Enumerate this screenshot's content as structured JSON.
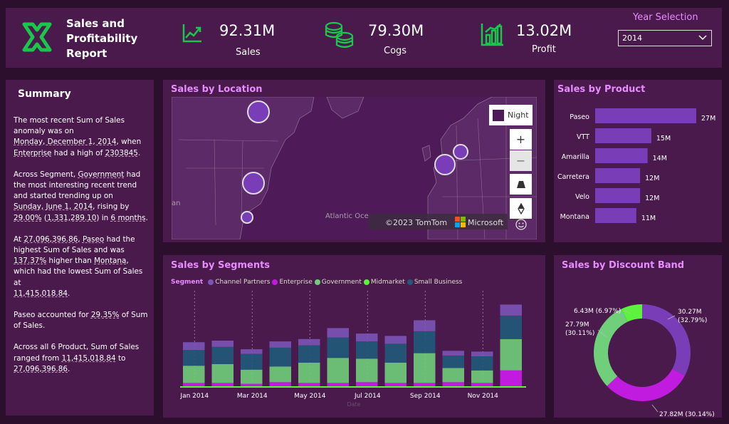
{
  "header": {
    "title_line1": "Sales and",
    "title_line2": "Profitability",
    "title_line3": "Report",
    "kpis": [
      {
        "value": "92.31M",
        "label": "Sales",
        "icon": "trend-up-chart-icon"
      },
      {
        "value": "79.30M",
        "label": "Cogs",
        "icon": "coin-stack-icon"
      },
      {
        "value": "13.02M",
        "label": "Profit",
        "icon": "bar-chart-icon"
      }
    ],
    "year_selection_label": "Year Selection",
    "year_selected": "2014",
    "brand_color": "#19c74a"
  },
  "summary": {
    "title": "Summary",
    "p1_a": "The most recent Sum of  Sales anomaly was on",
    "p1_date": "Monday, December 1, 2014",
    "p1_b": ", when",
    "p1_seg": "Enterprise",
    "p1_c": " had a high of ",
    "p1_val": "2303845",
    "p1_d": ".",
    "p2_a": "Across Segment, ",
    "p2_seg": "Government",
    "p2_b": " had the most interesting recent trend and started trending up on",
    "p2_date": "Sunday, June 1, 2014",
    "p2_c": ", rising by",
    "p2_pct": "29.00%",
    "p2_d": " (",
    "p2_abs": "1,331,289.10",
    "p2_e": ") in ",
    "p2_months": "6 months",
    "p2_f": ".",
    "p3_a": "At ",
    "p3_val": "27,096,396.86",
    "p3_b": ", ",
    "p3_prod": "Paseo",
    "p3_c": " had the highest Sum of  Sales and was",
    "p3_pct": "137.37%",
    "p3_d": " higher than ",
    "p3_prod2": "Montana",
    "p3_e": ", which had the lowest Sum of  Sales at",
    "p3_low": "11,415,018.84",
    "p3_f": ".",
    "p4_a": "Paseo accounted for ",
    "p4_pct": "29.35%",
    "p4_b": " of Sum of  Sales.",
    "p5_a": "Across all 6 Product, Sum of  Sales ranged from ",
    "p5_low": "11,415,018.84",
    "p5_b": " to",
    "p5_high": "27,096,396.86",
    "p5_c": "."
  },
  "location": {
    "title": "Sales by Location",
    "style_label": "Night",
    "ocean_label": "Atlantic Oce",
    "edge_label": "an",
    "copyright": "©2023 TomTom",
    "ms_label": "Microsoft",
    "zoom_in": "+",
    "zoom_out": "−"
  },
  "product": {
    "title": "Sales by Product",
    "bar_color": "#7a3db8"
  },
  "segments": {
    "title": "Sales by Segments",
    "legend_title": "Segment",
    "x_ticks": [
      "Jan 2014",
      "Mar 2014",
      "May 2014",
      "Jul 2014",
      "Sep 2014",
      "Nov 2014"
    ],
    "x_label": "Date"
  },
  "discount": {
    "title": "Sales by Discount Band"
  },
  "chart_data": [
    {
      "type": "bar",
      "title": "Sales by Product",
      "categories": [
        "Paseo",
        "VTT",
        "Amarilla",
        "Carretera",
        "Velo",
        "Montana"
      ],
      "values": [
        27,
        15,
        14,
        12,
        12,
        11
      ],
      "labels": [
        "27M",
        "15M",
        "14M",
        "12M",
        "12M",
        "11M"
      ],
      "unit": "M"
    },
    {
      "type": "area",
      "title": "Sales by Segments",
      "xlabel": "Date",
      "series": [
        {
          "name": "Channel Partners",
          "color": "#7b55b8"
        },
        {
          "name": "Enterprise",
          "color": "#c21be0"
        },
        {
          "name": "Government",
          "color": "#6fcf7a"
        },
        {
          "name": "Midmarket",
          "color": "#5cf23d"
        },
        {
          "name": "Small Business",
          "color": "#1f5a7a"
        }
      ]
    },
    {
      "type": "pie",
      "title": "Sales by Discount Band",
      "slices": [
        {
          "value": 30.27,
          "label": "30.27M",
          "pct": "(32.79%)",
          "color": "#7a3db8"
        },
        {
          "value": 27.82,
          "label": "27.82M (30.14%)",
          "pct": "",
          "color": "#c21be0"
        },
        {
          "value": 27.79,
          "label": "27.79M",
          "pct": "(30.11%)",
          "color": "#6fcf7a"
        },
        {
          "value": 6.43,
          "label": "6.43M (6.97%)",
          "pct": "",
          "color": "#5cf23d"
        }
      ]
    }
  ]
}
